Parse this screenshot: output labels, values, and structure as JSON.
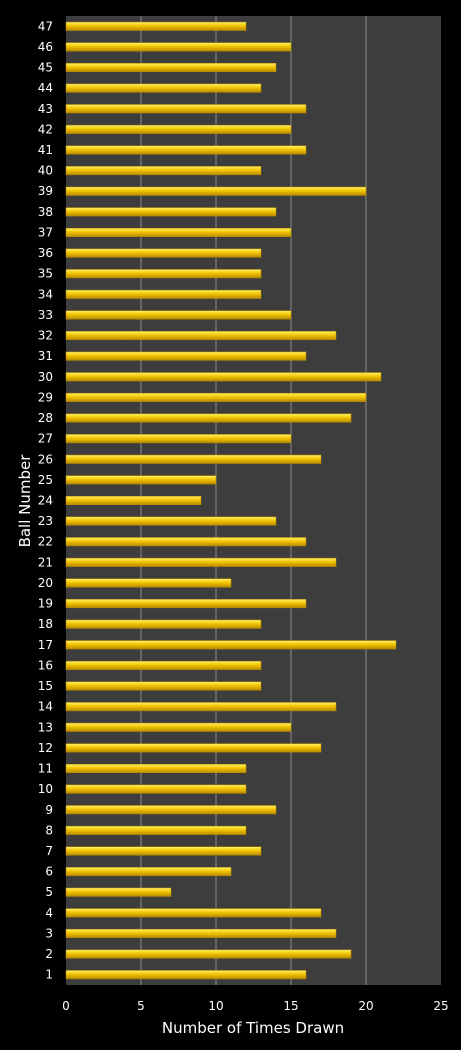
{
  "colors": {
    "background": "#000000",
    "plot_area": "#3d3d3d",
    "gridline": "#8a8a8a",
    "bar_fill": "#f2c400",
    "bar_highlight": "#fff26a",
    "bar_edge": "#b88a00",
    "text": "#ffffff"
  },
  "chart_data": {
    "type": "bar",
    "orientation": "horizontal",
    "title": "",
    "xlabel": "Number of Times Drawn",
    "ylabel": "Ball Number",
    "xlim": [
      0,
      25
    ],
    "xticks": [
      0,
      5,
      10,
      15,
      20,
      25
    ],
    "grid": true,
    "legend": "none",
    "categories": [
      "1",
      "2",
      "3",
      "4",
      "5",
      "6",
      "7",
      "8",
      "9",
      "10",
      "11",
      "12",
      "13",
      "14",
      "15",
      "16",
      "17",
      "18",
      "19",
      "20",
      "21",
      "22",
      "23",
      "24",
      "25",
      "26",
      "27",
      "28",
      "29",
      "30",
      "31",
      "32",
      "33",
      "34",
      "35",
      "36",
      "37",
      "38",
      "39",
      "40",
      "41",
      "42",
      "43",
      "44",
      "45",
      "46",
      "47"
    ],
    "values": [
      16,
      19,
      18,
      17,
      7,
      11,
      13,
      12,
      14,
      12,
      12,
      17,
      15,
      18,
      13,
      13,
      22,
      13,
      16,
      11,
      18,
      16,
      14,
      9,
      10,
      17,
      15,
      19,
      20,
      21,
      16,
      18,
      15,
      13,
      13,
      13,
      15,
      14,
      20,
      13,
      16,
      15,
      16,
      13,
      14,
      15,
      12
    ]
  }
}
